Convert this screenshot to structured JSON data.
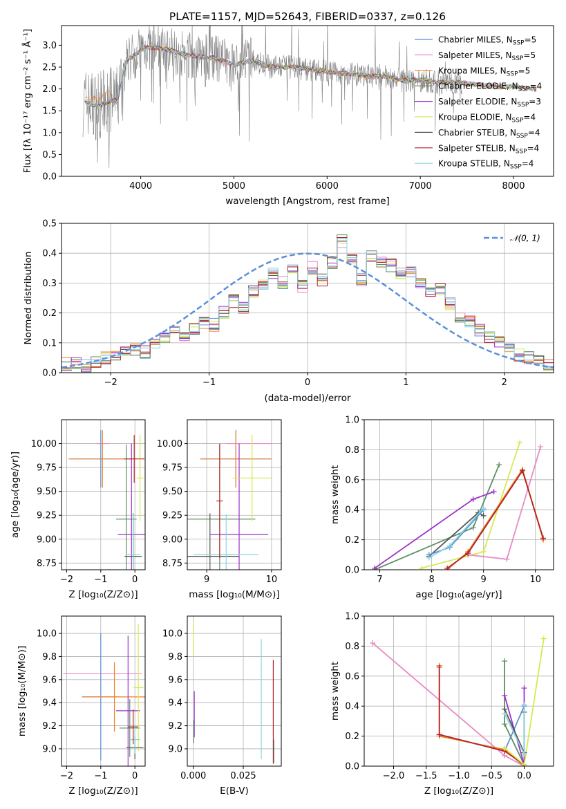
{
  "figure": {
    "title": "PLATE=1157, MJD=52643, FIBERID=0337, z=0.126"
  },
  "chart_data": [
    {
      "id": "spectrum",
      "type": "line",
      "title": "PLATE=1157, MJD=52643, FIBERID=0337, z=0.126",
      "xlabel": "wavelength [Angstrom, rest frame]",
      "ylabel": "Flux [fλ 10⁻¹⁷ erg cm⁻² s⁻¹ Å⁻¹]",
      "xlim": [
        3150,
        8430
      ],
      "ylim": [
        0,
        3.45
      ],
      "xticks": [
        "4000",
        "5000",
        "6000",
        "7000",
        "8000"
      ],
      "yticks": [
        "0.0",
        "0.5",
        "1.0",
        "1.5",
        "2.0",
        "2.5",
        "3.0"
      ],
      "grid": false,
      "legend_position": "upper-right",
      "data_color": "#808080",
      "legend": [
        {
          "label": "Chabrier MILES, N",
          "sub": "SSP",
          "tail": "=5",
          "color": "#5b8fd9"
        },
        {
          "label": "Salpeter MILES, N",
          "sub": "SSP",
          "tail": "=5",
          "color": "#e78ac3"
        },
        {
          "label": "Kroupa MILES, N",
          "sub": "SSP",
          "tail": "=5",
          "color": "#f07f24"
        },
        {
          "label": "Chabrier ELODIE, N",
          "sub": "SSP",
          "tail": "=4",
          "color": "#5c8f63"
        },
        {
          "label": "Salpeter ELODIE, N",
          "sub": "SSP",
          "tail": "=3",
          "color": "#9b30c9"
        },
        {
          "label": "Kroupa ELODIE, N",
          "sub": "SSP",
          "tail": "=4",
          "color": "#d4ea50"
        },
        {
          "label": "Chabrier STELIB, N",
          "sub": "SSP",
          "tail": "=4",
          "color": "#555555"
        },
        {
          "label": "Salpeter STELIB, N",
          "sub": "SSP",
          "tail": "=4",
          "color": "#b22222"
        },
        {
          "label": "Kroupa STELIB, N",
          "sub": "SSP",
          "tail": "=4",
          "color": "#8ad4dc"
        }
      ],
      "model_continuum": {
        "x": [
          3400,
          3550,
          3650,
          3750,
          3850,
          3950,
          4050,
          4150,
          4300,
          4450,
          4600,
          4800,
          5000,
          5200,
          5400,
          5600,
          5800,
          6000,
          6200,
          6400,
          6600,
          6800,
          7000,
          7200,
          7400,
          7600,
          7800,
          8000,
          8200
        ],
        "y": [
          1.7,
          1.6,
          1.7,
          1.75,
          2.65,
          2.8,
          2.95,
          2.95,
          2.9,
          2.8,
          2.75,
          2.7,
          2.55,
          2.65,
          2.5,
          2.5,
          2.45,
          2.4,
          2.35,
          2.3,
          2.3,
          2.2,
          2.2,
          2.15,
          2.15,
          2.1,
          2.05,
          2.05,
          2.0
        ]
      },
      "orange_excursion": {
        "x": [
          3530,
          3700
        ],
        "y": [
          1.75,
          2.05
        ]
      }
    },
    {
      "id": "residuals",
      "type": "histogram",
      "xlabel": "(data-model)/error",
      "ylabel": "Normed distribution",
      "xlim": [
        -2.5,
        2.5
      ],
      "ylim": [
        0,
        0.5
      ],
      "xticks": [
        "−2",
        "−1",
        "0",
        "1",
        "2"
      ],
      "yticks": [
        "0.0",
        "0.1",
        "0.2",
        "0.3",
        "0.4",
        "0.5"
      ],
      "grid": true,
      "legend_position": "upper-right",
      "legend": [
        {
          "label": "𝒩(0, 1)",
          "color": "#5b8fd9",
          "style": "dashed"
        }
      ],
      "bins": {
        "start": -2.5,
        "width": 0.1
      },
      "base_values": [
        0.03,
        0.035,
        0.025,
        0.04,
        0.05,
        0.06,
        0.07,
        0.08,
        0.07,
        0.1,
        0.12,
        0.14,
        0.12,
        0.15,
        0.17,
        0.16,
        0.2,
        0.24,
        0.22,
        0.27,
        0.3,
        0.33,
        0.3,
        0.35,
        0.29,
        0.35,
        0.31,
        0.37,
        0.44,
        0.38,
        0.31,
        0.39,
        0.37,
        0.36,
        0.33,
        0.34,
        0.3,
        0.27,
        0.28,
        0.23,
        0.18,
        0.17,
        0.14,
        0.12,
        0.1,
        0.08,
        0.06,
        0.05,
        0.04,
        0.03
      ],
      "series_colors": [
        "#5b8fd9",
        "#e78ac3",
        "#f07f24",
        "#5c8f63",
        "#9b30c9",
        "#d4ea50",
        "#555555",
        "#b22222",
        "#8ad4dc"
      ]
    },
    {
      "id": "age-vs-Z",
      "type": "errorbar",
      "xlabel": "Z [log₁₀(Z/Z⊙)]",
      "ylabel": "age  [log₁₀(age/yr)]",
      "xlim": [
        -2.15,
        0.3
      ],
      "ylim": [
        8.68,
        10.25
      ],
      "xticks": [
        "−2",
        "−1",
        "0"
      ],
      "yticks": [
        "8.75",
        "9.00",
        "9.25",
        "9.50",
        "9.75",
        "10.00"
      ],
      "grid": true,
      "points": [
        {
          "x": -0.95,
          "xerr": 0.2,
          "y": 10.0,
          "yerr": 0.0,
          "color": "#e78ac3"
        },
        {
          "x": -1.0,
          "xerr": 0.9,
          "y": 9.84,
          "yerr": 0.3,
          "color": "#5b8fd9"
        },
        {
          "x": -0.95,
          "xerr": 1.0,
          "y": 9.84,
          "yerr": 0.3,
          "color": "#f07f24"
        },
        {
          "x": -0.25,
          "xerr": 0.3,
          "y": 9.21,
          "yerr": 0.78,
          "color": "#5c8f63"
        },
        {
          "x": -0.1,
          "xerr": 0.4,
          "y": 9.05,
          "yerr": 0.95,
          "color": "#9b30c9"
        },
        {
          "x": 0.15,
          "xerr": 0.1,
          "y": 9.64,
          "yerr": 0.45,
          "color": "#d4ea50"
        },
        {
          "x": -0.05,
          "xerr": 0.25,
          "y": 8.82,
          "yerr": 0.45,
          "color": "#555555"
        },
        {
          "x": -0.05,
          "xerr": 0.2,
          "y": 8.84,
          "yerr": 0.42,
          "color": "#8ad4dc"
        },
        {
          "x": -0.02,
          "xerr": 0.3,
          "y": 9.84,
          "yerr": 0.25,
          "color": "#b22222"
        }
      ]
    },
    {
      "id": "age-vs-mass",
      "type": "errorbar",
      "xlabel": "mass [log₁₀(M/M⊙)]",
      "ylabel": "",
      "xlim": [
        8.7,
        10.15
      ],
      "ylim": [
        8.68,
        10.25
      ],
      "xticks": [
        "9",
        "10"
      ],
      "yticks": [
        "8.75",
        "9.00",
        "9.25",
        "9.50",
        "9.75",
        "10.00"
      ],
      "grid": true,
      "points": [
        {
          "x": 9.65,
          "xerr": 0.35,
          "y": 10.0,
          "yerr": 0.0,
          "color": "#e78ac3"
        },
        {
          "x": 9.45,
          "xerr": 0.55,
          "y": 9.84,
          "yerr": 0.3,
          "color": "#5b8fd9"
        },
        {
          "x": 9.45,
          "xerr": 0.55,
          "y": 9.84,
          "yerr": 0.3,
          "color": "#f07f24"
        },
        {
          "x": 9.2,
          "xerr": 0.55,
          "y": 9.21,
          "yerr": 0.78,
          "color": "#5c8f63"
        },
        {
          "x": 9.5,
          "xerr": 0.45,
          "y": 9.05,
          "yerr": 0.95,
          "color": "#9b30c9"
        },
        {
          "x": 9.7,
          "xerr": 0.3,
          "y": 9.64,
          "yerr": 0.45,
          "color": "#d4ea50"
        },
        {
          "x": 9.05,
          "xerr": 0.45,
          "y": 8.82,
          "yerr": 0.45,
          "color": "#555555"
        },
        {
          "x": 9.3,
          "xerr": 0.5,
          "y": 8.84,
          "yerr": 0.42,
          "color": "#8ad4dc"
        },
        {
          "x": 9.2,
          "xerr": 0.05,
          "y": 9.4,
          "yerr": 0.6,
          "color": "#b22222"
        }
      ]
    },
    {
      "id": "weight-vs-age",
      "type": "line",
      "xlabel": "age  [log₁₀(age/yr)]",
      "ylabel": "mass weight",
      "xlim": [
        6.7,
        10.35
      ],
      "ylim": [
        0,
        1.0
      ],
      "xticks": [
        "7",
        "8",
        "9",
        "10"
      ],
      "yticks": [
        "0.0",
        "0.2",
        "0.4",
        "0.6",
        "0.8",
        "1.0"
      ],
      "grid": true,
      "series": [
        {
          "color": "#5c8f63",
          "x": [
            6.9,
            8.8,
            9.3
          ],
          "y": [
            0.0,
            0.28,
            0.7
          ]
        },
        {
          "color": "#9b30c9",
          "x": [
            6.9,
            8.8,
            9.2
          ],
          "y": [
            0.01,
            0.47,
            0.52
          ]
        },
        {
          "color": "#d4ea50",
          "x": [
            7.8,
            9.0,
            9.7
          ],
          "y": [
            0.01,
            0.12,
            0.85
          ]
        },
        {
          "color": "#e78ac3",
          "x": [
            8.7,
            9.45,
            10.1
          ],
          "y": [
            0.1,
            0.07,
            0.82
          ]
        },
        {
          "color": "#f07f24",
          "x": [
            8.3,
            8.7,
            9.75,
            10.15
          ],
          "y": [
            0.0,
            0.12,
            0.67,
            0.2
          ]
        },
        {
          "color": "#b22222",
          "x": [
            8.3,
            8.7,
            9.75,
            10.15
          ],
          "y": [
            0.01,
            0.11,
            0.66,
            0.21
          ]
        },
        {
          "color": "#555555",
          "x": [
            7.95,
            8.9,
            9.0
          ],
          "y": [
            0.09,
            0.38,
            0.36
          ]
        },
        {
          "color": "#5b8fd9",
          "x": [
            7.95,
            8.35,
            9.0
          ],
          "y": [
            0.1,
            0.15,
            0.4
          ]
        },
        {
          "color": "#8ad4dc",
          "x": [
            7.95,
            8.35,
            9.0
          ],
          "y": [
            0.08,
            0.16,
            0.41
          ]
        }
      ]
    },
    {
      "id": "mass-vs-Z",
      "type": "errorbar",
      "xlabel": "Z [log₁₀(Z/Z⊙)]",
      "ylabel": "mass [log₁₀(M/M⊙)]",
      "xlim": [
        -2.15,
        0.3
      ],
      "ylim": [
        8.85,
        10.15
      ],
      "xticks": [
        "−2",
        "−1",
        "0"
      ],
      "yticks": [
        "9.0",
        "9.2",
        "9.4",
        "9.6",
        "9.8",
        "10.0"
      ],
      "grid": true,
      "points": [
        {
          "x": -0.95,
          "xerr": 1.15,
          "y": 9.65,
          "yerr": 0.0,
          "color": "#e78ac3"
        },
        {
          "x": -1.0,
          "xerr": 0.55,
          "y": 9.45,
          "yerr": 0.55,
          "color": "#5b8fd9"
        },
        {
          "x": -0.6,
          "xerr": 0.9,
          "y": 9.45,
          "yerr": 0.3,
          "color": "#f07f24"
        },
        {
          "x": -0.15,
          "xerr": 0.3,
          "y": 9.18,
          "yerr": 0.25,
          "color": "#5c8f63"
        },
        {
          "x": -0.2,
          "xerr": 0.35,
          "y": 9.33,
          "yerr": 0.65,
          "color": "#9b30c9"
        },
        {
          "x": 0.1,
          "xerr": 0.15,
          "y": 9.53,
          "yerr": 0.55,
          "color": "#d4ea50"
        },
        {
          "x": 0.0,
          "xerr": 0.25,
          "y": 9.01,
          "yerr": 0.1,
          "color": "#555555"
        },
        {
          "x": 0.0,
          "xerr": 0.15,
          "y": 9.08,
          "yerr": 0.12,
          "color": "#8ad4dc"
        },
        {
          "x": -0.05,
          "xerr": 0.15,
          "y": 9.19,
          "yerr": 0.15,
          "color": "#b22222"
        }
      ]
    },
    {
      "id": "mass-vs-ebv",
      "type": "errorbar",
      "xlabel": "E(B-V)",
      "ylabel": "",
      "xlim": [
        -0.003,
        0.044
      ],
      "ylim": [
        8.85,
        10.15
      ],
      "xticks": [
        "0.000",
        "0.025"
      ],
      "yticks": [
        "9.0",
        "9.2",
        "9.4",
        "9.6",
        "9.8",
        "10.0"
      ],
      "grid": true,
      "points": [
        {
          "x": 0.0,
          "xerr": 0.0,
          "y": 9.95,
          "yerr": 0.15,
          "color": "#d4ea50"
        },
        {
          "x": 0.0005,
          "xerr": 0.0,
          "y": 9.3,
          "yerr": 0.2,
          "color": "#9b30c9"
        },
        {
          "x": 0.0002,
          "xerr": 0.0,
          "y": 9.15,
          "yerr": 0.1,
          "color": "#5c8f63"
        },
        {
          "x": 0.034,
          "xerr": 0.0,
          "y": 9.43,
          "yerr": 0.52,
          "color": "#8ad4dc"
        },
        {
          "x": 0.04,
          "xerr": 0.0,
          "y": 9.32,
          "yerr": 0.45,
          "color": "#b22222"
        },
        {
          "x": 0.0402,
          "xerr": 0.0,
          "y": 8.98,
          "yerr": 0.1,
          "color": "#555555"
        }
      ]
    },
    {
      "id": "weight-vs-Z",
      "type": "line",
      "xlabel": "Z [log₁₀(Z/Z⊙)]",
      "ylabel": "mass weight",
      "xlim": [
        -2.45,
        0.45
      ],
      "ylim": [
        0,
        1.0
      ],
      "xticks": [
        "−2.0",
        "−1.5",
        "−1.0",
        "−0.5",
        "0.0"
      ],
      "yticks": [
        "0.0",
        "0.2",
        "0.4",
        "0.6",
        "0.8",
        "1.0"
      ],
      "grid": true,
      "series": [
        {
          "color": "#e78ac3",
          "x": [
            -2.32,
            -0.3,
            0.0
          ],
          "y": [
            0.82,
            0.07,
            0.0
          ]
        },
        {
          "color": "#5b8fd9",
          "x": [
            -1.3,
            -0.3,
            0.0
          ],
          "y": [
            0.21,
            0.1,
            0.4
          ]
        },
        {
          "color": "#f07f24",
          "x": [
            -1.3,
            -1.3,
            -0.3,
            0.0
          ],
          "y": [
            0.67,
            0.2,
            0.11,
            0.0
          ]
        },
        {
          "color": "#b22222",
          "x": [
            -1.3,
            -1.3,
            -0.3,
            0.0
          ],
          "y": [
            0.66,
            0.21,
            0.1,
            0.01
          ]
        },
        {
          "color": "#5c8f63",
          "x": [
            -0.3,
            -0.3,
            0.0
          ],
          "y": [
            0.7,
            0.28,
            0.01
          ]
        },
        {
          "color": "#9b30c9",
          "x": [
            -0.3,
            0.0,
            0.0
          ],
          "y": [
            0.47,
            0.01,
            0.52
          ]
        },
        {
          "color": "#d4ea50",
          "x": [
            -0.3,
            0.0,
            0.3
          ],
          "y": [
            0.12,
            0.01,
            0.85
          ]
        },
        {
          "color": "#555555",
          "x": [
            -0.3,
            0.0,
            0.0
          ],
          "y": [
            0.38,
            0.09,
            0.36
          ]
        },
        {
          "color": "#8ad4dc",
          "x": [
            -0.3,
            0.0,
            0.0
          ],
          "y": [
            0.35,
            0.08,
            0.41
          ]
        }
      ]
    }
  ]
}
